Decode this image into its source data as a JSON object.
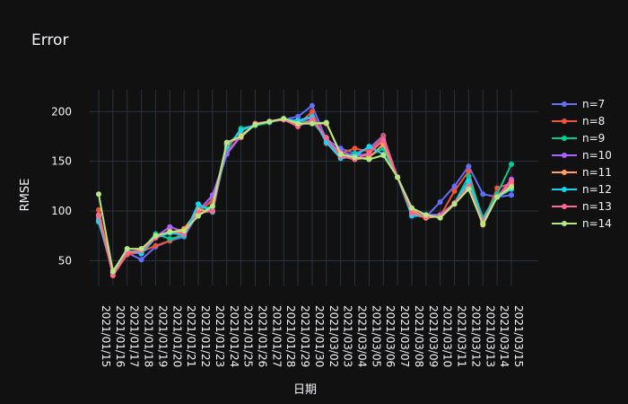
{
  "chart_data": {
    "type": "line",
    "title": "Error",
    "xlabel": "日期",
    "ylabel": "RMSE",
    "ylim": [
      25,
      222
    ],
    "yticks": [
      50,
      100,
      150,
      200
    ],
    "grid": true,
    "legend_position": "right",
    "x": [
      "2021/01/15",
      "2021/01/16",
      "2021/01/17",
      "2021/01/18",
      "2021/01/19",
      "2021/01/20",
      "2021/01/21",
      "2021/01/22",
      "2021/01/23",
      "2021/01/24",
      "2021/01/25",
      "2021/01/26",
      "2021/01/27",
      "2021/01/28",
      "2021/01/29",
      "2021/01/30",
      "2021/03/02",
      "2021/03/03",
      "2021/03/04",
      "2021/03/05",
      "2021/03/06",
      "2021/03/07",
      "2021/03/08",
      "2021/03/09",
      "2021/03/10",
      "2021/03/11",
      "2021/03/12",
      "2021/03/13",
      "2021/03/14",
      "2021/03/15"
    ],
    "series": [
      {
        "name": "n=7",
        "color": "#636efa",
        "values": [
          92,
          38,
          58,
          51,
          64,
          70,
          74,
          98,
          112,
          157,
          176,
          187,
          190,
          192,
          195,
          206,
          172,
          163,
          158,
          163,
          176,
          134,
          97,
          94,
          109,
          125,
          145,
          117,
          114,
          116
        ]
      },
      {
        "name": "n=8",
        "color": "#ef553b",
        "values": [
          101,
          35,
          56,
          59,
          65,
          70,
          78,
          100,
          110,
          160,
          175,
          188,
          190,
          193,
          187,
          200,
          168,
          158,
          163,
          160,
          175,
          134,
          97,
          93,
          95,
          120,
          140,
          88,
          123,
          128
        ]
      },
      {
        "name": "n=9",
        "color": "#00cc96",
        "values": [
          89,
          40,
          59,
          60,
          77,
          72,
          75,
          103,
          104,
          162,
          183,
          186,
          189,
          193,
          190,
          190,
          173,
          154,
          158,
          155,
          163,
          134,
          97,
          96,
          96,
          108,
          135,
          93,
          117,
          147
        ]
      },
      {
        "name": "n=10",
        "color": "#ab63fa",
        "values": [
          92,
          38,
          59,
          58,
          74,
          84,
          79,
          100,
          116,
          158,
          175,
          188,
          190,
          192,
          190,
          194,
          170,
          160,
          155,
          158,
          172,
          134,
          103,
          96,
          96,
          108,
          128,
          91,
          114,
          132
        ]
      },
      {
        "name": "n=11",
        "color": "#ffa15a",
        "values": [
          95,
          40,
          58,
          61,
          74,
          78,
          82,
          101,
          100,
          167,
          176,
          187,
          190,
          192,
          188,
          188,
          188,
          158,
          152,
          154,
          167,
          134,
          101,
          93,
          95,
          107,
          124,
          86,
          114,
          126
        ]
      },
      {
        "name": "n=12",
        "color": "#19d3f3",
        "values": [
          90,
          38,
          60,
          57,
          73,
          78,
          76,
          107,
          99,
          165,
          181,
          187,
          190,
          192,
          191,
          195,
          169,
          153,
          155,
          165,
          157,
          134,
          95,
          95,
          95,
          107,
          130,
          90,
          114,
          122
        ]
      },
      {
        "name": "n=13",
        "color": "#ff6692",
        "values": [
          96,
          35,
          58,
          60,
          73,
          80,
          77,
          98,
          100,
          168,
          174,
          188,
          190,
          192,
          185,
          192,
          174,
          155,
          152,
          158,
          171,
          134,
          98,
          94,
          95,
          108,
          125,
          89,
          114,
          130
        ]
      },
      {
        "name": "n=14",
        "color": "#b6e880",
        "values": [
          117,
          39,
          62,
          62,
          75,
          79,
          80,
          95,
          105,
          169,
          175,
          187,
          190,
          193,
          188,
          188,
          189,
          157,
          154,
          152,
          156,
          134,
          103,
          96,
          93,
          107,
          122,
          87,
          114,
          124
        ]
      }
    ]
  }
}
